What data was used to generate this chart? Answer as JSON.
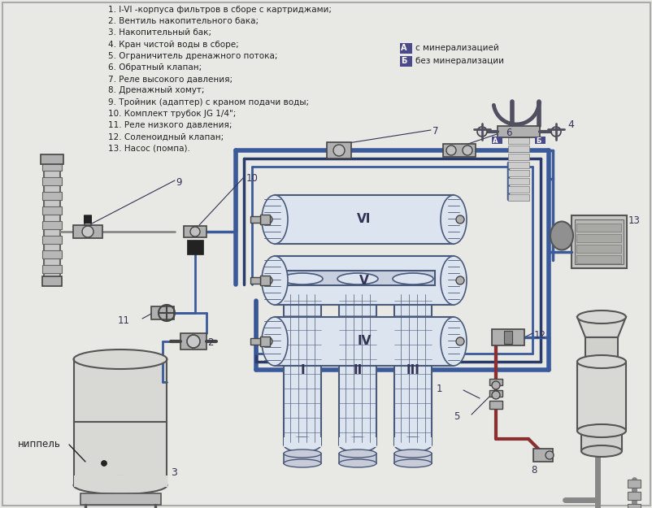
{
  "bg_color": "#e8e8e4",
  "blue": "#3a5a9a",
  "dark_blue": "#2a3a6a",
  "red": "#8B3030",
  "gray": "#888888",
  "filter_fill": "#dce4f0",
  "filter_edge": "#4a5a7a",
  "tank_fill": "#d8d8d4",
  "tank_edge": "#555555",
  "faucet_color": "#505060",
  "comp_fill": "#b0b0b0",
  "comp_edge": "#444444",
  "black_fill": "#222222",
  "text_color": "#222222",
  "label_color": "#333355",
  "legend_bg": "#4a4a8a",
  "parts_list": [
    "1. I-VI -корпуса фильтров в сборе с картриджами;",
    "2. Вентиль накопительного бака;",
    "3. Накопительный бак;",
    "4. Кран чистой воды в сборе;",
    "5. Ограничитель дренажного потока;",
    "6. Обратный клапан;",
    "7. Реле высокого давления;",
    "8. Дренажный хомут;",
    "9. Тройник (адаптер) с краном подачи воды;",
    "10. Комплект трубок JG 1/4\";",
    "11. Реле низкого давления;",
    "12. Соленоидный клапан;",
    "13. Насос (помпа)."
  ],
  "nipple_label": "ниппель"
}
